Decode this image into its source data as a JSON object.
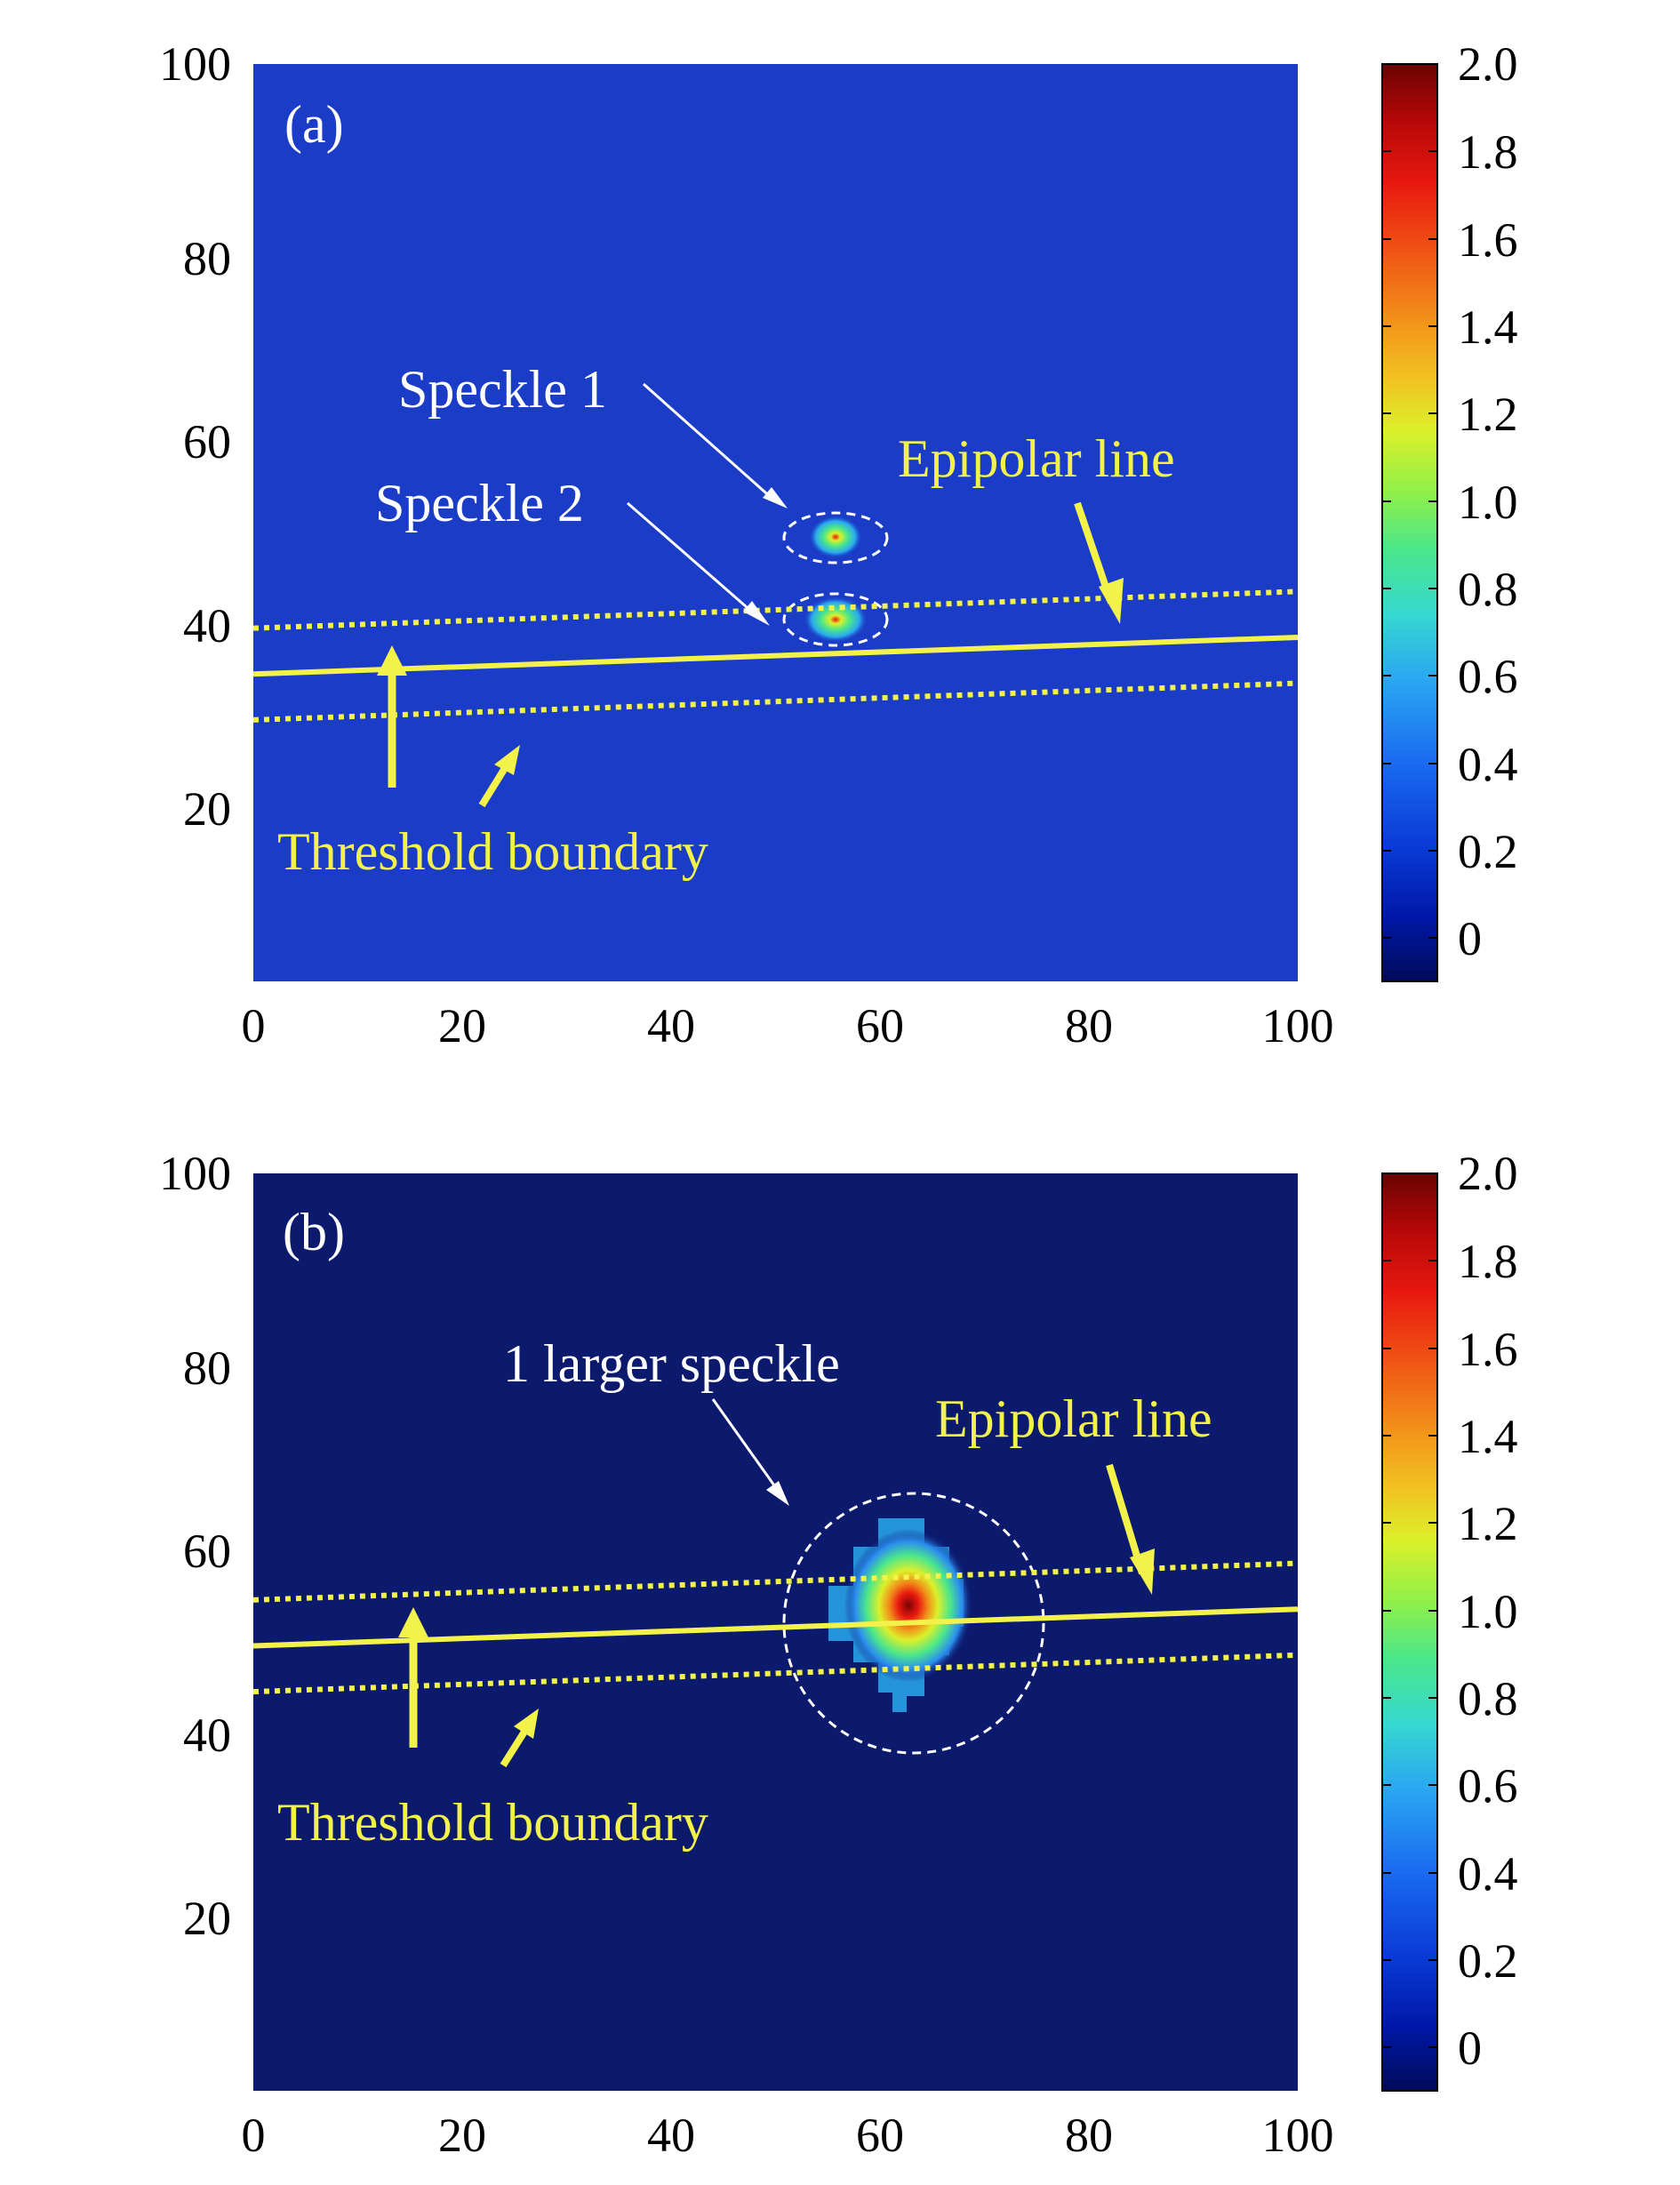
{
  "chart_data": [
    {
      "type": "heatmap",
      "panel_label": "(a)",
      "xlim": [
        0,
        100
      ],
      "ylim": [
        0,
        100
      ],
      "x_ticks": [
        "0",
        "20",
        "40",
        "60",
        "80",
        "100"
      ],
      "y_ticks": [
        "20",
        "40",
        "60",
        "80",
        "100"
      ],
      "colorbar": {
        "range": [
          -0.1,
          2.0
        ],
        "ticks": [
          "0",
          "0.2",
          "0.4",
          "0.6",
          "0.8",
          "1.0",
          "1.2",
          "1.4",
          "1.6",
          "1.8",
          "2.0"
        ]
      },
      "background_color": "#1a3cc6",
      "speckles": [
        {
          "cx": 56,
          "cy": 48.5,
          "peak": 1.6
        },
        {
          "cx": 56,
          "cy": 39.5,
          "peak": 1.9
        }
      ],
      "epipolar_line": {
        "y_at_x0": 33.5,
        "y_at_x100": 37.5
      },
      "threshold_upper": {
        "y_at_x0": 38.5,
        "y_at_x100": 42.5
      },
      "threshold_lower": {
        "y_at_x0": 28.5,
        "y_at_x100": 32.5
      },
      "annotations": {
        "speckle1": "Speckle 1",
        "speckle2": "Speckle 2",
        "epipolar": "Epipolar line",
        "threshold": "Threshold boundary"
      },
      "text_color": "#ffffff",
      "line_color": "#f2f24a"
    },
    {
      "type": "heatmap",
      "panel_label": "(b)",
      "xlim": [
        0,
        100
      ],
      "ylim": [
        0,
        100
      ],
      "x_ticks": [
        "0",
        "20",
        "40",
        "60",
        "80",
        "100"
      ],
      "y_ticks": [
        "20",
        "40",
        "60",
        "80",
        "100"
      ],
      "colorbar": {
        "range": [
          -0.1,
          2.0
        ],
        "ticks": [
          "0",
          "0.2",
          "0.4",
          "0.6",
          "0.8",
          "1.0",
          "1.2",
          "1.4",
          "1.6",
          "1.8",
          "2.0"
        ]
      },
      "background_color": "#0c1a6e",
      "speckles": [
        {
          "cx": 63,
          "cy": 53.5,
          "peak": 2.0
        }
      ],
      "epipolar_line": {
        "y_at_x0": 48.5,
        "y_at_x100": 52.5
      },
      "threshold_upper": {
        "y_at_x0": 53.5,
        "y_at_x100": 57.5
      },
      "threshold_lower": {
        "y_at_x0": 43.5,
        "y_at_x100": 47.5
      },
      "annotations": {
        "speckle": "1 larger speckle",
        "epipolar": "Epipolar line",
        "threshold": "Threshold boundary"
      },
      "text_color": "#ffffff",
      "line_color": "#f2f24a"
    }
  ]
}
